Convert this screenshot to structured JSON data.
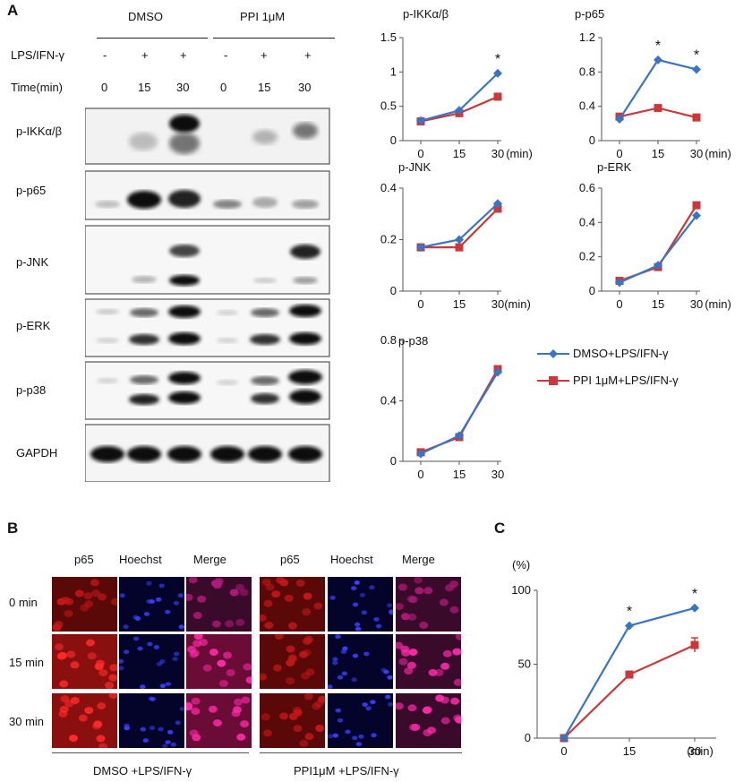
{
  "panel_a": {
    "letter": "A",
    "group_labels": [
      "DMSO",
      "PPI 1μM"
    ],
    "row_headers": [
      "LPS/IFN-γ",
      "Time(min)"
    ],
    "lps_marks": [
      "-",
      "+",
      "+",
      "-",
      "+",
      "+"
    ],
    "time_marks": [
      "0",
      "15",
      "30",
      "0",
      "15",
      "30"
    ],
    "blot_labels": [
      "p-IKKα/β",
      "p-p65",
      "p-JNK",
      "p-ERK",
      "p-p38",
      "GAPDH"
    ]
  },
  "panel_b": {
    "letter": "B",
    "column_headers": [
      "p65",
      "Hoechst",
      "Merge",
      "p65",
      "Hoechst",
      "Merge"
    ],
    "row_labels": [
      "0 min",
      "15 min",
      "30 min"
    ],
    "group_captions": [
      "DMSO +LPS/IFN-γ",
      "PPI1μM +LPS/IFN-γ"
    ]
  },
  "panel_c": {
    "letter": "C"
  },
  "legend": {
    "series": [
      "DMSO+LPS/IFN-γ",
      "PPI 1μM+LPS/IFN-γ"
    ],
    "colors": [
      "#3a74c4",
      "#c9393a"
    ]
  },
  "chart_data": [
    {
      "id": "ikk",
      "type": "line",
      "title": "p-IKKα/β",
      "x": [
        "0",
        "15",
        "30"
      ],
      "xunit": "(min)",
      "ylim": [
        0,
        1.5
      ],
      "yticks": [
        "0",
        "0.5",
        "1",
        "1.5"
      ],
      "series": [
        {
          "name": "DMSO+LPS/IFN-γ",
          "values": [
            0.29,
            0.44,
            0.98
          ]
        },
        {
          "name": "PPI 1μM+LPS/IFN-γ",
          "values": [
            0.28,
            0.4,
            0.64
          ]
        }
      ],
      "asterisks": [
        "",
        "",
        "*"
      ]
    },
    {
      "id": "p65",
      "type": "line",
      "title": "p-p65",
      "x": [
        "0",
        "15",
        "30"
      ],
      "xunit": "(min)",
      "ylim": [
        0,
        1.2
      ],
      "yticks": [
        "0",
        "0.4",
        "0.8",
        "1.2"
      ],
      "series": [
        {
          "name": "DMSO+LPS/IFN-γ",
          "values": [
            0.25,
            0.94,
            0.83
          ]
        },
        {
          "name": "PPI 1μM+LPS/IFN-γ",
          "values": [
            0.28,
            0.38,
            0.27
          ]
        }
      ],
      "asterisks": [
        "",
        "*",
        "*"
      ]
    },
    {
      "id": "jnk",
      "type": "line",
      "title": "p-JNK",
      "x": [
        "0",
        "15",
        "30"
      ],
      "xunit": "(min)",
      "ylim": [
        0,
        0.4
      ],
      "yticks": [
        "0",
        "0.2",
        "0.4"
      ],
      "series": [
        {
          "name": "DMSO+LPS/IFN-γ",
          "values": [
            0.17,
            0.2,
            0.34
          ]
        },
        {
          "name": "PPI 1μM+LPS/IFN-γ",
          "values": [
            0.17,
            0.17,
            0.32
          ]
        }
      ],
      "asterisks": [
        "",
        "",
        ""
      ]
    },
    {
      "id": "erk",
      "type": "line",
      "title": "p-ERK",
      "x": [
        "0",
        "15",
        "30"
      ],
      "xunit": "(min)",
      "ylim": [
        0,
        0.6
      ],
      "yticks": [
        "0",
        "0.2",
        "0.4",
        "0.6"
      ],
      "series": [
        {
          "name": "DMSO+LPS/IFN-γ",
          "values": [
            0.05,
            0.15,
            0.44
          ]
        },
        {
          "name": "PPI 1μM+LPS/IFN-γ",
          "values": [
            0.06,
            0.14,
            0.5
          ]
        }
      ],
      "asterisks": [
        "",
        "",
        ""
      ]
    },
    {
      "id": "p38",
      "type": "line",
      "title": "p-p38",
      "x": [
        "0",
        "15",
        "30"
      ],
      "xunit": "(min)",
      "ylim": [
        0,
        0.8
      ],
      "yticks": [
        "0",
        "0.4",
        "0.8"
      ],
      "series": [
        {
          "name": "DMSO+LPS/IFN-γ",
          "values": [
            0.05,
            0.17,
            0.59
          ]
        },
        {
          "name": "PPI 1μM+LPS/IFN-γ",
          "values": [
            0.06,
            0.16,
            0.61
          ]
        }
      ],
      "asterisks": [
        "",
        "",
        ""
      ]
    },
    {
      "id": "c",
      "type": "line",
      "title": "",
      "x": [
        "0",
        "15",
        "30"
      ],
      "xunit": "(min)",
      "yunit": "(%)",
      "ylim": [
        0,
        100
      ],
      "yticks": [
        "0",
        "50",
        "100"
      ],
      "series": [
        {
          "name": "DMSO+LPS/IFN-γ",
          "values": [
            0,
            76,
            88
          ]
        },
        {
          "name": "PPI 1μM+LPS/IFN-γ",
          "values": [
            0,
            43,
            63
          ]
        }
      ],
      "asterisks": [
        "",
        "*",
        "*"
      ]
    }
  ]
}
